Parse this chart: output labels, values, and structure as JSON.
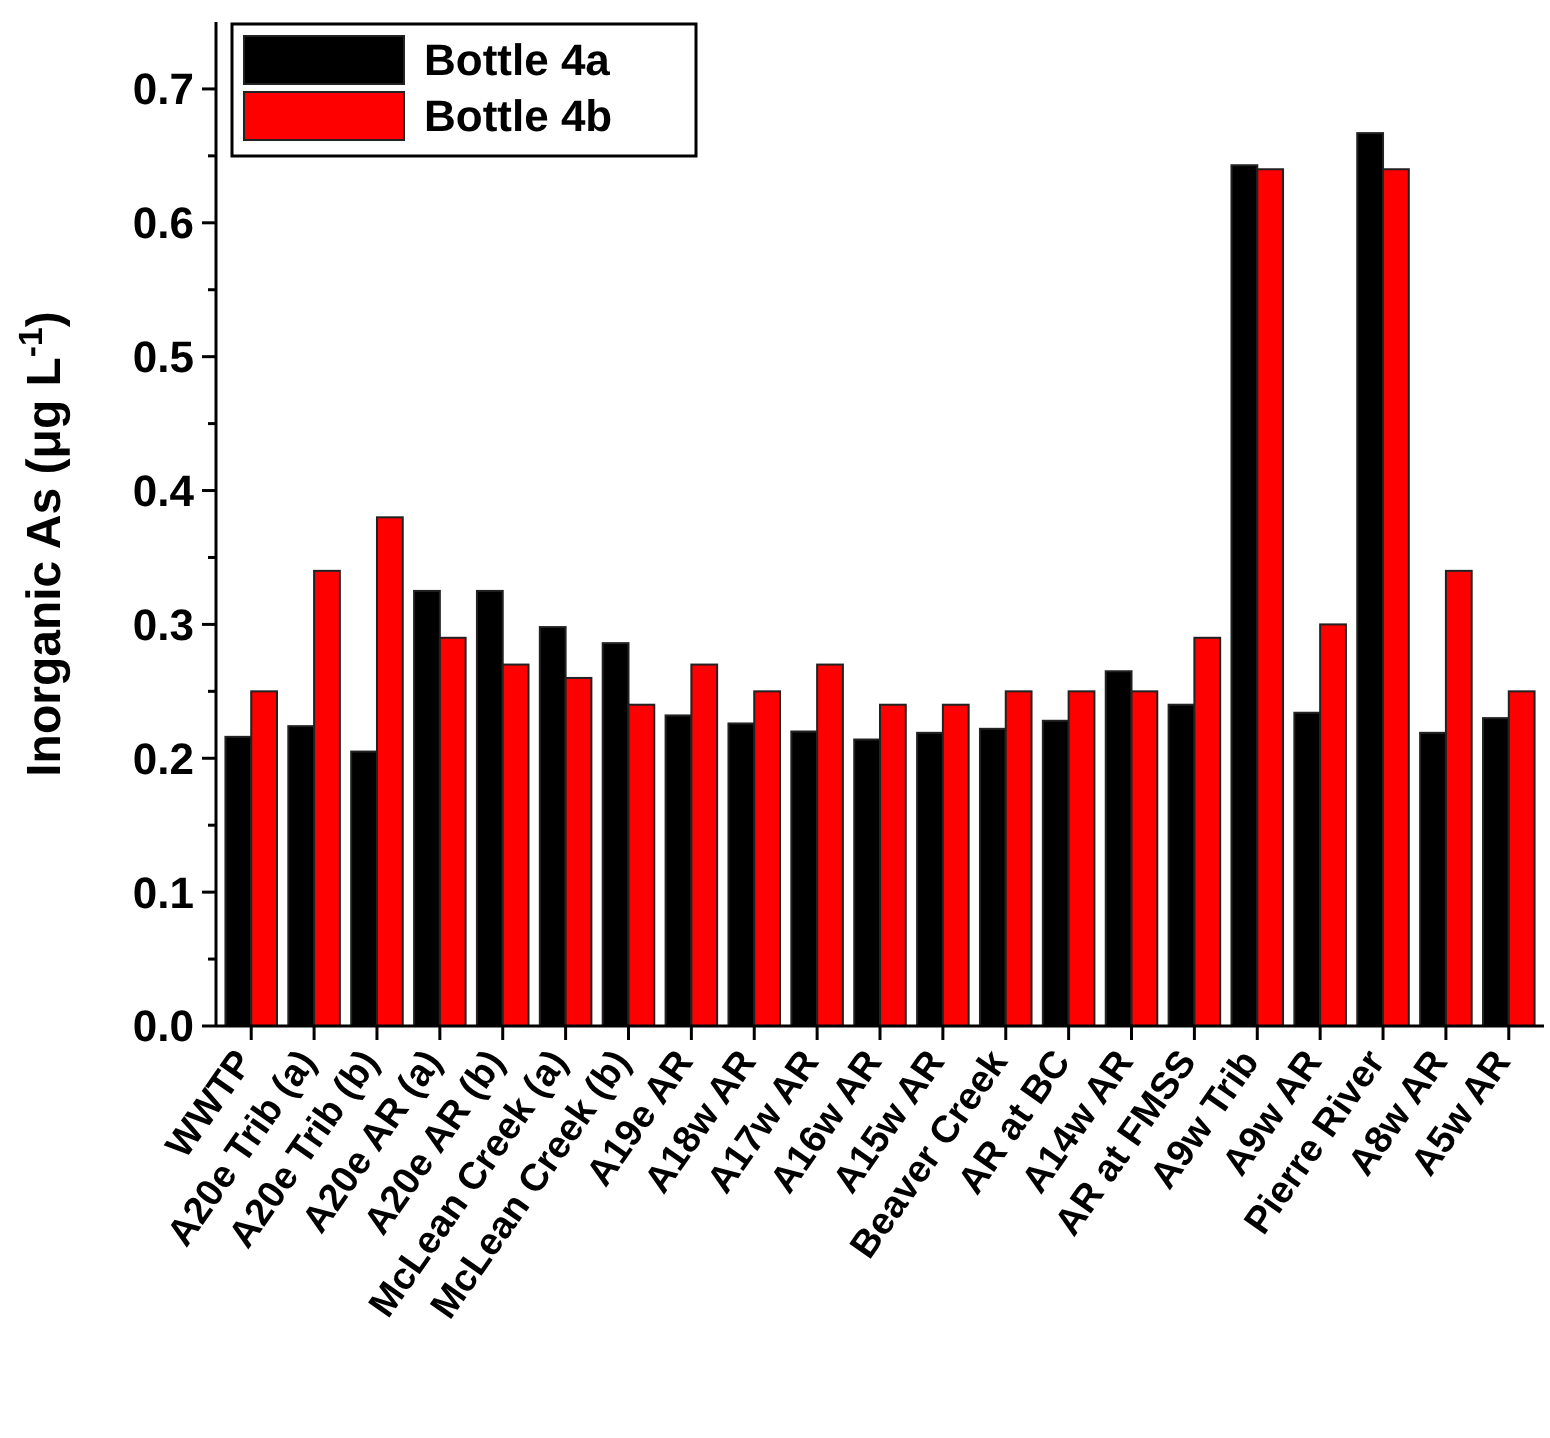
{
  "chart_data": {
    "type": "bar",
    "ylabel": "Inorganic As (μg L$^{-1}$)",
    "categories": [
      "WWTP",
      "A20e Trib (a)",
      "A20e Trib (b)",
      "A20e AR (a)",
      "A20e AR (b)",
      "McLean Creek (a)",
      "McLean Creek (b)",
      "A19e AR",
      "A18w AR",
      "A17w AR",
      "A16w AR",
      "A15w AR",
      "Beaver Creek",
      "AR at BC",
      "A14w AR",
      "AR at FMSS",
      "A9w Trib",
      "A9w AR",
      "Pierre River",
      "A8w AR",
      "A5w AR"
    ],
    "series": [
      {
        "name": "Bottle 4a",
        "color": "#000000",
        "values": [
          0.216,
          0.224,
          0.205,
          0.325,
          0.325,
          0.298,
          0.286,
          0.232,
          0.226,
          0.22,
          0.214,
          0.219,
          0.222,
          0.228,
          0.265,
          0.24,
          0.643,
          0.234,
          0.667,
          0.219,
          0.23
        ]
      },
      {
        "name": "Bottle 4b",
        "color": "#ff0000",
        "values": [
          0.25,
          0.34,
          0.38,
          0.29,
          0.27,
          0.26,
          0.24,
          0.27,
          0.25,
          0.27,
          0.24,
          0.24,
          0.25,
          0.25,
          0.25,
          0.29,
          0.64,
          0.3,
          0.64,
          0.34,
          0.25
        ]
      }
    ],
    "ylim": [
      0,
      0.75
    ],
    "yticks": [
      {
        "value": 0,
        "label": "0.0"
      },
      {
        "value": 0.05,
        "label": null
      },
      0.1,
      {
        "value": 0.15,
        "label": null
      },
      0.2,
      {
        "value": 0.25,
        "label": null
      },
      0.3,
      {
        "value": 0.35,
        "label": null
      },
      0.4,
      {
        "value": 0.45,
        "label": null
      },
      0.5,
      {
        "value": 0.55,
        "label": null
      },
      0.6,
      {
        "value": 0.65,
        "label": null
      },
      0.7
    ],
    "legend": "top left",
    "grid": false
  }
}
